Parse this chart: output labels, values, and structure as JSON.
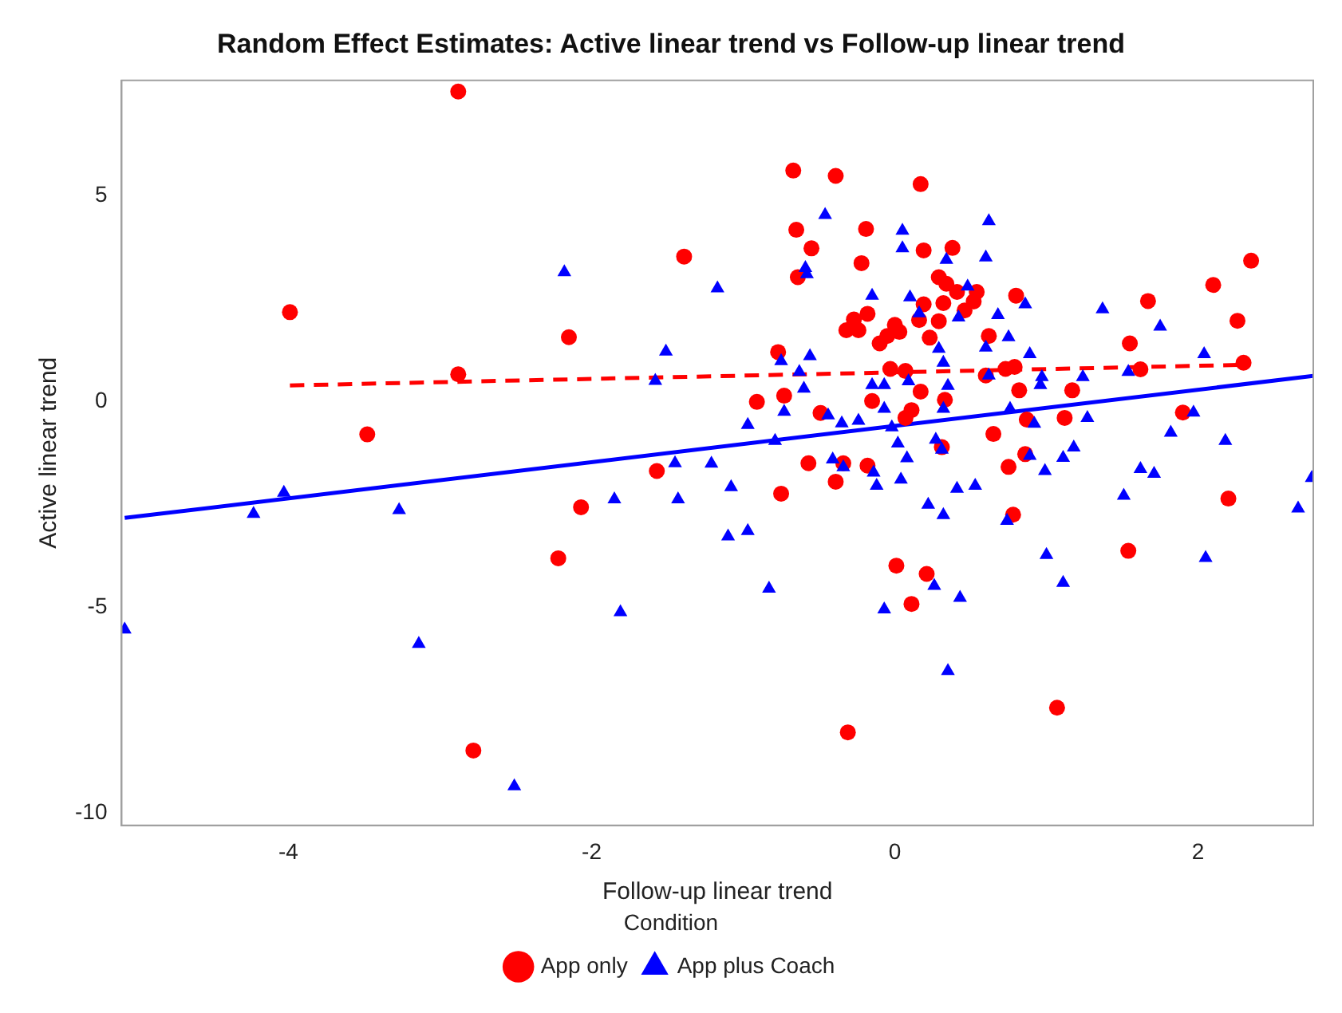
{
  "chart_data": {
    "type": "scatter",
    "title": "Random Effect Estimates: Active linear trend vs Follow-up linear trend",
    "xlabel": "Follow-up linear trend",
    "ylabel": "Active linear trend",
    "legend_title": "Condition",
    "legend": "bottom",
    "grid": false,
    "xlim": [
      -5.1,
      2.76
    ],
    "xticks": [
      -4,
      -2,
      0,
      2
    ],
    "ylim": [
      -10.3,
      7.8
    ],
    "yticks": [
      -10,
      -5,
      0,
      5
    ],
    "series": [
      {
        "name": "App only",
        "type": "scatter",
        "marker": "circle",
        "color": "#ff0000",
        "x": [
          -2.88,
          -3.99,
          -1.39,
          -2.15,
          -2.88,
          -3.48,
          -1.57,
          -2.07,
          -2.22,
          -2.78,
          0.65,
          0.86,
          0.75,
          -0.75,
          -0.39,
          -0.57,
          -0.34,
          -0.18,
          0.31,
          0.78,
          2.2,
          1.54,
          0.01,
          0.21,
          0.11,
          1.07,
          -0.31,
          -0.67,
          -0.39,
          0.17,
          -0.65,
          -0.19,
          -0.55,
          0.19,
          0.38,
          -0.22,
          -0.64,
          0.29,
          0.34,
          0.41,
          0.54,
          0.52,
          0.46,
          0.8,
          0.32,
          0.19,
          0.29,
          0.16,
          -0.18,
          -0.27,
          -0.32,
          -0.24,
          0.0,
          0.03,
          -0.05,
          -0.1,
          0.23,
          0.62,
          -0.77,
          -0.03,
          0.07,
          0.73,
          0.79,
          0.6,
          1.55,
          1.67,
          2.1,
          2.35,
          2.26,
          2.3,
          1.62,
          -0.91,
          -0.73,
          -0.15,
          0.17,
          0.33,
          0.82,
          1.17,
          -0.49,
          0.11,
          0.07,
          0.87,
          1.12,
          1.9
        ],
        "values": [
          7.53,
          2.17,
          3.52,
          1.56,
          0.66,
          -0.8,
          -1.69,
          -2.57,
          -3.81,
          -8.48,
          -0.79,
          -1.28,
          -1.59,
          -2.24,
          -1.95,
          -1.5,
          -1.5,
          -1.56,
          -1.11,
          -2.75,
          -2.36,
          -3.63,
          -3.99,
          -4.19,
          -4.92,
          -7.44,
          -8.04,
          5.61,
          5.48,
          5.28,
          4.17,
          4.19,
          3.72,
          3.67,
          3.73,
          3.36,
          3.02,
          3.02,
          2.86,
          2.66,
          2.66,
          2.43,
          2.21,
          2.57,
          2.39,
          2.36,
          1.95,
          1.98,
          2.13,
          1.99,
          1.73,
          1.73,
          1.86,
          1.69,
          1.59,
          1.41,
          1.55,
          1.59,
          1.2,
          0.79,
          0.74,
          0.79,
          0.84,
          0.63,
          1.41,
          2.44,
          2.83,
          3.42,
          1.96,
          0.94,
          0.78,
          -0.01,
          0.14,
          0.01,
          0.24,
          0.04,
          0.27,
          0.27,
          -0.28,
          -0.21,
          -0.4,
          -0.44,
          -0.4,
          -0.27
        ]
      },
      {
        "name": "App plus Coach",
        "type": "scatter",
        "marker": "triangle",
        "color": "#0000ff",
        "x": [
          -2.18,
          -1.17,
          -1.51,
          -1.58,
          -5.08,
          -4.23,
          -4.03,
          -3.27,
          -3.14,
          -2.51,
          -1.85,
          -1.81,
          -1.45,
          -1.43,
          -1.21,
          -1.08,
          -1.1,
          -0.97,
          -0.79,
          -0.97,
          -0.83,
          -0.41,
          -0.34,
          -0.14,
          -0.12,
          0.04,
          0.08,
          0.02,
          0.27,
          0.31,
          0.22,
          0.32,
          0.41,
          0.53,
          0.26,
          0.43,
          -0.07,
          0.35,
          0.74,
          0.89,
          0.99,
          1.11,
          1.18,
          1.0,
          1.11,
          1.51,
          1.62,
          1.71,
          1.82,
          2.18,
          2.05,
          2.66,
          2.75,
          0.92,
          -0.46,
          0.05,
          0.05,
          0.62,
          0.6,
          0.34,
          -0.59,
          -0.58,
          -0.15,
          0.1,
          0.48,
          0.86,
          0.16,
          0.42,
          0.68,
          1.37,
          1.75,
          0.75,
          0.6,
          0.89,
          0.29,
          0.32,
          -0.75,
          -0.56,
          -0.63,
          -0.6,
          -0.15,
          -0.07,
          0.09,
          0.35,
          0.62,
          0.97,
          0.96,
          1.24,
          1.54,
          2.04,
          -0.73,
          -0.44,
          -0.35,
          -0.24,
          -0.07,
          0.32,
          0.76,
          1.27,
          1.97,
          -0.02
        ],
        "values": [
          3.14,
          2.75,
          1.21,
          0.5,
          -5.54,
          -2.73,
          -2.22,
          -2.64,
          -5.89,
          -9.35,
          -2.38,
          -5.12,
          -1.5,
          -2.38,
          -1.51,
          -2.08,
          -3.28,
          -0.57,
          -0.96,
          -3.15,
          -4.55,
          -1.41,
          -1.6,
          -1.73,
          -2.05,
          -1.9,
          -1.38,
          -1.02,
          -0.93,
          -1.17,
          -2.51,
          -2.76,
          -2.12,
          -2.05,
          -4.48,
          -4.77,
          -5.05,
          -6.55,
          -2.9,
          -1.32,
          -1.69,
          -1.37,
          -1.12,
          -3.73,
          -4.41,
          -2.29,
          -1.64,
          -1.76,
          -0.76,
          -0.96,
          -3.8,
          -2.6,
          -1.86,
          -0.54,
          4.53,
          4.15,
          3.72,
          4.38,
          3.5,
          3.44,
          3.24,
          3.09,
          2.57,
          2.53,
          2.79,
          2.36,
          2.14,
          2.04,
          2.1,
          2.24,
          1.82,
          1.56,
          1.31,
          1.15,
          1.28,
          0.94,
          0.98,
          1.1,
          0.72,
          0.31,
          0.4,
          0.4,
          0.49,
          0.38,
          0.63,
          0.59,
          0.4,
          0.59,
          0.72,
          1.15,
          -0.25,
          -0.34,
          -0.53,
          -0.47,
          -0.18,
          -0.18,
          -0.18,
          -0.4,
          -0.27,
          -0.63
        ]
      },
      {
        "type": "line",
        "color": "#ff0000",
        "line_style": "dashed",
        "x": [
          -3.99,
          2.3
        ],
        "values": [
          0.39,
          0.89
        ]
      },
      {
        "type": "line",
        "color": "#0000ff",
        "line_style": "solid",
        "x": [
          -5.08,
          2.76
        ],
        "values": [
          -2.83,
          0.62
        ]
      }
    ]
  }
}
